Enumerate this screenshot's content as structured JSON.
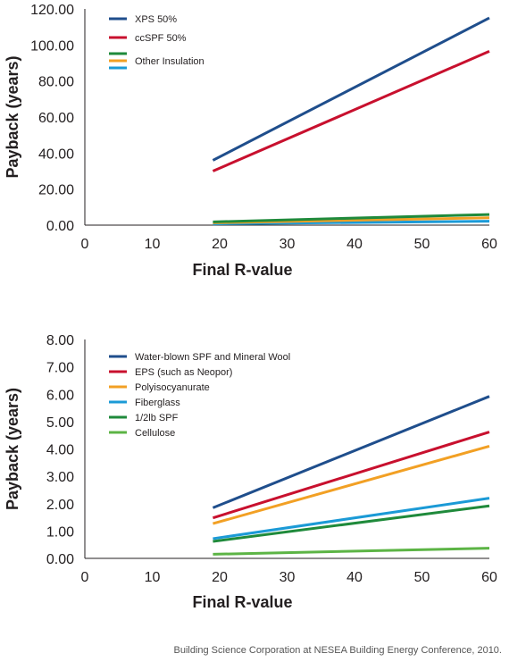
{
  "source_note": "Building Science Corporation at NESEA Building Energy Conference, 2010.",
  "colors": {
    "navy": "#1f4e8c",
    "red": "#c8102e",
    "orange": "#f2a024",
    "sky": "#1b9ad6",
    "green": "#1f8a3b",
    "lightgreen": "#5cb445"
  },
  "chart_data": [
    {
      "type": "line",
      "xlabel": "Final R-value",
      "ylabel": "Payback (years)",
      "xlim": [
        0,
        60
      ],
      "ylim": [
        0,
        120
      ],
      "x_ticks": [
        "0",
        "10",
        "20",
        "30",
        "40",
        "50",
        "60"
      ],
      "y_ticks": [
        "0.00",
        "20.00",
        "40.00",
        "60.00",
        "80.00",
        "100.00",
        "120.00"
      ],
      "grid": false,
      "legend_position": "top-left",
      "legend": [
        {
          "label": "XPS 50%",
          "colors": [
            "#1f4e8c"
          ]
        },
        {
          "label": "ccSPF 50%",
          "colors": [
            "#c8102e"
          ]
        },
        {
          "label": "Other Insulation",
          "colors": [
            "#1f8a3b",
            "#f2a024",
            "#1b9ad6"
          ]
        }
      ],
      "series": [
        {
          "name": "XPS 50%",
          "color": "#1f4e8c",
          "x": [
            19,
            60
          ],
          "y": [
            36.0,
            115.0
          ]
        },
        {
          "name": "ccSPF 50%",
          "color": "#c8102e",
          "x": [
            19,
            60
          ],
          "y": [
            30.0,
            96.5
          ]
        },
        {
          "color": "#1f8a3b",
          "x": [
            19,
            60
          ],
          "y": [
            1.8,
            5.9
          ]
        },
        {
          "color": "#f2a024",
          "x": [
            19,
            60
          ],
          "y": [
            1.3,
            4.1
          ]
        },
        {
          "color": "#1b9ad6",
          "x": [
            19,
            60
          ],
          "y": [
            0.7,
            2.2
          ]
        }
      ]
    },
    {
      "type": "line",
      "xlabel": "Final R-value",
      "ylabel": "Payback (years)",
      "xlim": [
        0,
        60
      ],
      "ylim": [
        0,
        8
      ],
      "x_ticks": [
        "0",
        "10",
        "20",
        "30",
        "40",
        "50",
        "60"
      ],
      "y_ticks": [
        "0.00",
        "1.00",
        "2.00",
        "3.00",
        "4.00",
        "5.00",
        "6.00",
        "7.00",
        "8.00"
      ],
      "grid": false,
      "legend_position": "top-left",
      "legend": [
        {
          "label": "Water-blown SPF and Mineral Wool",
          "colors": [
            "#1f4e8c"
          ]
        },
        {
          "label": "EPS (such as Neopor)",
          "colors": [
            "#c8102e"
          ]
        },
        {
          "label": "Polyisocyanurate",
          "colors": [
            "#f2a024"
          ]
        },
        {
          "label": "Fiberglass",
          "colors": [
            "#1b9ad6"
          ]
        },
        {
          "label": "1/2lb SPF",
          "colors": [
            "#1f8a3b"
          ]
        },
        {
          "label": "Cellulose",
          "colors": [
            "#5cb445"
          ]
        }
      ],
      "series": [
        {
          "name": "Water-blown SPF and Mineral Wool",
          "color": "#1f4e8c",
          "x": [
            19,
            60
          ],
          "y": [
            1.85,
            5.92
          ]
        },
        {
          "name": "EPS (such as Neopor)",
          "color": "#c8102e",
          "x": [
            19,
            60
          ],
          "y": [
            1.48,
            4.62
          ]
        },
        {
          "name": "Polyisocyanurate",
          "color": "#f2a024",
          "x": [
            19,
            60
          ],
          "y": [
            1.27,
            4.1
          ]
        },
        {
          "name": "Fiberglass",
          "color": "#1b9ad6",
          "x": [
            19,
            60
          ],
          "y": [
            0.72,
            2.2
          ]
        },
        {
          "name": "1/2lb SPF",
          "color": "#1f8a3b",
          "x": [
            19,
            60
          ],
          "y": [
            0.62,
            1.92
          ]
        },
        {
          "name": "Cellulose",
          "color": "#5cb445",
          "x": [
            19,
            60
          ],
          "y": [
            0.15,
            0.37
          ]
        }
      ]
    }
  ]
}
